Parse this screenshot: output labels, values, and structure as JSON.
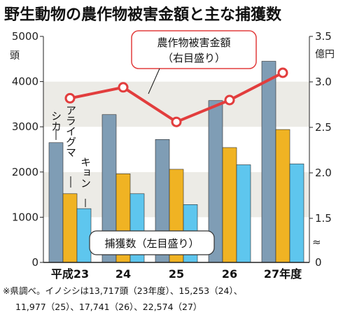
{
  "title": "野生動物の農作物被害金額と主な捕獲数",
  "chart_data": {
    "type": "bar",
    "categories": [
      "平成23",
      "24",
      "25",
      "26",
      "27年度"
    ],
    "series": [
      {
        "name": "シカ",
        "values": [
          2650,
          3270,
          2720,
          3580,
          4450
        ],
        "color": "#7f9db5"
      },
      {
        "name": "アライグマ",
        "values": [
          1520,
          1960,
          2060,
          2540,
          2940
        ],
        "color": "#f0b323"
      },
      {
        "name": "キョン",
        "values": [
          1190,
          1520,
          1280,
          2160,
          2180
        ],
        "color": "#5ec6ee"
      }
    ],
    "line": {
      "name": "農作物被害金額",
      "sublabel": "（右目盛り）",
      "values": [
        2.82,
        2.94,
        2.56,
        2.8,
        3.1
      ],
      "color": "#e23d3d"
    },
    "bar_legend": "捕獲数（左目盛り）",
    "left_axis": {
      "unit": "頭",
      "ticks": [
        0,
        1000,
        2000,
        3000,
        4000,
        5000
      ],
      "tick_labels": [
        "0",
        "1000",
        "2000",
        "3000",
        "4000",
        "5000"
      ],
      "range": [
        0,
        5000
      ]
    },
    "right_axis": {
      "unit": "億円",
      "ticks": [
        1.5,
        2.0,
        2.5,
        3.0,
        3.5
      ],
      "tick_labels": [
        "1.5",
        "2.0",
        "2.5",
        "3.0",
        "3.5"
      ],
      "range": [
        1.0,
        3.5
      ],
      "break_symbol": "≈",
      "zero_label": "0"
    },
    "grid": "horizontal bands",
    "note_lines": [
      "※県調べ。イノシシは13,717頭（23年度）、15,253（24）、",
      "11,977（25）、17,741（26）、22,574（27）"
    ]
  }
}
